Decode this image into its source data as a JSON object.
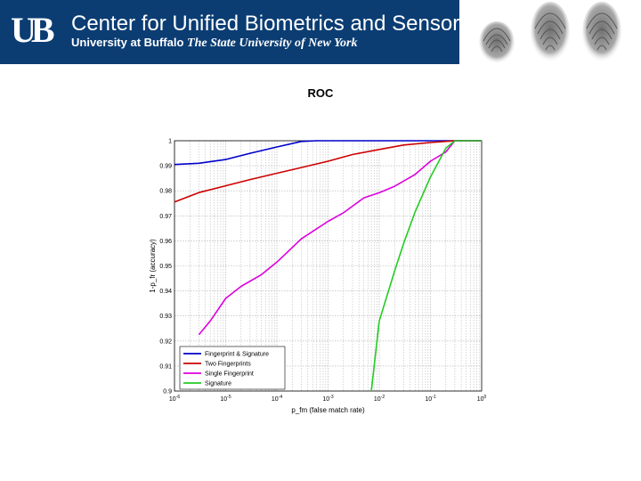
{
  "header": {
    "logo_text": "UB",
    "title": "Center for Unified Biometrics and Sensors",
    "subtitle_bold": "University at Buffalo",
    "subtitle_italic": "The State University of New York"
  },
  "slide": {
    "title": "ROC"
  },
  "chart_data": {
    "type": "line",
    "title": "ROC",
    "xlabel": "p_fm (false match rate)",
    "ylabel": "1-p_fr (accuracy)",
    "xscale": "log",
    "xlim": [
      1e-06,
      1
    ],
    "ylim": [
      0.9,
      1.0
    ],
    "xticks": [
      1e-06,
      1e-05,
      0.0001,
      0.001,
      0.01,
      0.1,
      1
    ],
    "xtick_labels": [
      "10^-6",
      "10^-5",
      "10^-4",
      "10^-3",
      "10^-2",
      "10^-1",
      "10^0"
    ],
    "yticks": [
      0.9,
      0.91,
      0.92,
      0.93,
      0.94,
      0.95,
      0.96,
      0.97,
      0.98,
      0.99,
      1
    ],
    "ytick_labels": [
      "0.9",
      "0.91",
      "0.92",
      "0.93",
      "0.94",
      "0.95",
      "0.96",
      "0.97",
      "0.98",
      "0.99",
      "1"
    ],
    "grid": true,
    "legend_position": "bottom-left",
    "series": [
      {
        "name": "Fingerprint & Signature",
        "color": "#0000cc",
        "x": [
          1e-06,
          3e-06,
          1e-05,
          3e-05,
          0.0001,
          0.0003,
          0.0006,
          0.001,
          0.01,
          0.1,
          0.3,
          1
        ],
        "y": [
          0.9905,
          0.991,
          0.9925,
          0.995,
          0.9975,
          0.9997,
          1.0,
          1.0,
          1.0,
          1.0,
          1.0,
          1.0
        ]
      },
      {
        "name": "Two Fingerprints",
        "color": "#cc0000",
        "x": [
          1e-06,
          3e-06,
          1e-05,
          3e-05,
          0.0001,
          0.0003,
          0.001,
          0.003,
          0.01,
          0.03,
          0.1,
          0.3,
          1
        ],
        "y": [
          0.9755,
          0.9793,
          0.982,
          0.9845,
          0.987,
          0.9893,
          0.9918,
          0.9945,
          0.9965,
          0.9983,
          0.9993,
          1.0,
          1.0
        ]
      },
      {
        "name": "Single Fingerprint",
        "color": "#dd00dd",
        "x": [
          3e-06,
          5e-06,
          1e-05,
          2e-05,
          5e-05,
          0.0001,
          0.0003,
          0.001,
          0.002,
          0.005,
          0.01,
          0.02,
          0.05,
          0.1,
          0.2,
          0.3,
          1
        ],
        "y": [
          0.9225,
          0.928,
          0.937,
          0.9418,
          0.9465,
          0.9515,
          0.9608,
          0.9678,
          0.9712,
          0.9772,
          0.9792,
          0.9818,
          0.9865,
          0.9918,
          0.9955,
          1.0,
          1.0
        ]
      },
      {
        "name": "Signature",
        "color": "#22cc22",
        "x": [
          0.007,
          0.01,
          0.02,
          0.03,
          0.05,
          0.1,
          0.2,
          0.3,
          0.5,
          1
        ],
        "y": [
          0.9,
          0.928,
          0.948,
          0.959,
          0.9715,
          0.9855,
          0.997,
          1.0,
          1.0,
          1.0
        ]
      }
    ]
  }
}
